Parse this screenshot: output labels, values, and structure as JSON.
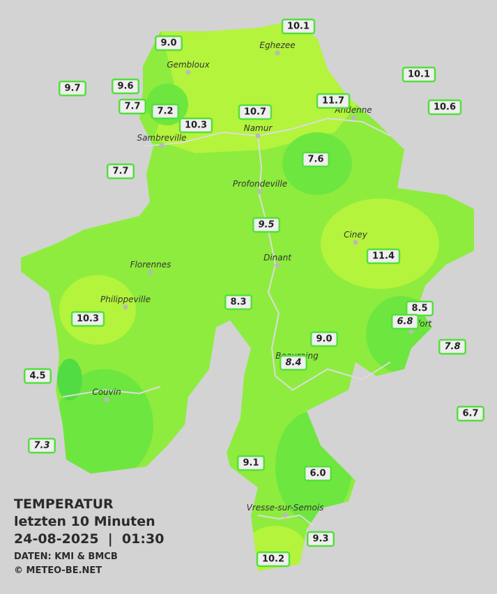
{
  "title": "TEMPERATUR",
  "subtitle": "letzten 10 Minuten",
  "datetime": "24-08-2025  |  01:30",
  "source": "DATEN: KMI & BMCB",
  "copyright": "© METEO-BE.NET",
  "cities": [
    "Eghezee",
    "Gembloux",
    "Andenne",
    "Namur",
    "Sambreville",
    "Profondeville",
    "Ciney",
    "Dinant",
    "Florennes",
    "Philippeville",
    "Rochefort",
    "Beauraing",
    "Couvin",
    "Vresse-sur-Semois"
  ],
  "stations": [
    "10.1",
    "9.0",
    "9.7",
    "9.6",
    "7.7",
    "7.2",
    "10.3",
    "10.7",
    "11.7",
    "10.1",
    "10.6",
    "7.7",
    "7.6",
    "9.5",
    "11.4",
    "8.3",
    "10.3",
    "8.5",
    "6.8",
    "9.0",
    "7.8",
    "8.4",
    "4.5",
    "6.7",
    "7.3",
    "9.1",
    "6.0",
    "9.3",
    "10.2"
  ]
}
